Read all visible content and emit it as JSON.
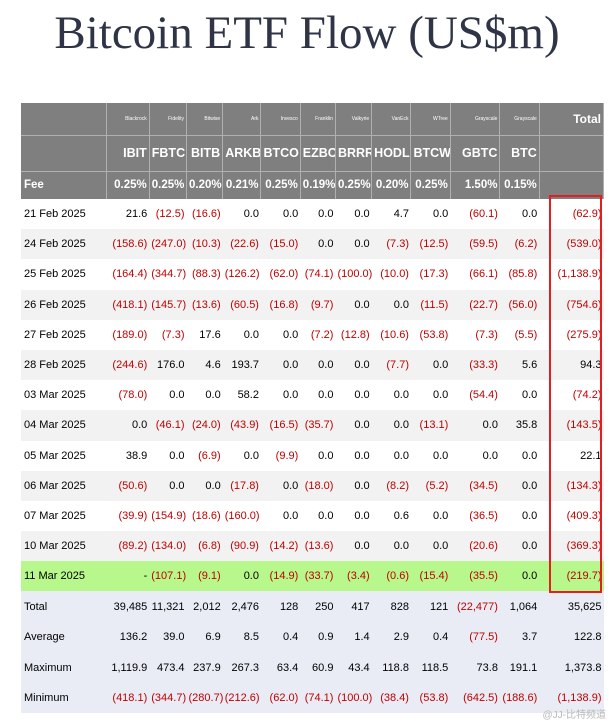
{
  "title": "Bitcoin ETF Flow (US$m)",
  "columns": [
    {
      "issuer": "Blackrock",
      "ticker": "IBIT",
      "fee": "0.25%"
    },
    {
      "issuer": "Fidelity",
      "ticker": "FBTC",
      "fee": "0.25%"
    },
    {
      "issuer": "Bitwise",
      "ticker": "BITB",
      "fee": "0.20%"
    },
    {
      "issuer": "Ark",
      "ticker": "ARKB",
      "fee": "0.21%"
    },
    {
      "issuer": "Invesco",
      "ticker": "BTCO",
      "fee": "0.25%"
    },
    {
      "issuer": "Franklin",
      "ticker": "EZBC",
      "fee": "0.19%"
    },
    {
      "issuer": "Valkyrie",
      "ticker": "BRRR",
      "fee": "0.25%"
    },
    {
      "issuer": "VanEck",
      "ticker": "HODL",
      "fee": "0.20%"
    },
    {
      "issuer": "WTree",
      "ticker": "BTCW",
      "fee": "0.25%"
    },
    {
      "issuer": "Grayscale",
      "ticker": "GBTC",
      "fee": "1.50%"
    },
    {
      "issuer": "Grayscale",
      "ticker": "BTC",
      "fee": "0.15%"
    }
  ],
  "total_header": "Total",
  "fee_label": "Fee",
  "rows": [
    {
      "date": "21 Feb 2025",
      "values": [
        "21.6",
        "(12.5)",
        "(16.6)",
        "0.0",
        "0.0",
        "0.0",
        "0.0",
        "4.7",
        "0.0",
        "(60.1)",
        "0.0"
      ],
      "total": "(62.9)"
    },
    {
      "date": "24 Feb 2025",
      "values": [
        "(158.6)",
        "(247.0)",
        "(10.3)",
        "(22.6)",
        "(15.0)",
        "0.0",
        "0.0",
        "(7.3)",
        "(12.5)",
        "(59.5)",
        "(6.2)"
      ],
      "total": "(539.0)"
    },
    {
      "date": "25 Feb 2025",
      "values": [
        "(164.4)",
        "(344.7)",
        "(88.3)",
        "(126.2)",
        "(62.0)",
        "(74.1)",
        "(100.0)",
        "(10.0)",
        "(17.3)",
        "(66.1)",
        "(85.8)"
      ],
      "total": "(1,138.9)"
    },
    {
      "date": "26 Feb 2025",
      "values": [
        "(418.1)",
        "(145.7)",
        "(13.6)",
        "(60.5)",
        "(16.8)",
        "(9.7)",
        "0.0",
        "0.0",
        "(11.5)",
        "(22.7)",
        "(56.0)"
      ],
      "total": "(754.6)"
    },
    {
      "date": "27 Feb 2025",
      "values": [
        "(189.0)",
        "(7.3)",
        "17.6",
        "0.0",
        "0.0",
        "(7.2)",
        "(12.8)",
        "(10.6)",
        "(53.8)",
        "(7.3)",
        "(5.5)"
      ],
      "total": "(275.9)"
    },
    {
      "date": "28 Feb 2025",
      "values": [
        "(244.6)",
        "176.0",
        "4.6",
        "193.7",
        "0.0",
        "0.0",
        "0.0",
        "(7.7)",
        "0.0",
        "(33.3)",
        "5.6"
      ],
      "total": "94.3"
    },
    {
      "date": "03 Mar 2025",
      "values": [
        "(78.0)",
        "0.0",
        "0.0",
        "58.2",
        "0.0",
        "0.0",
        "0.0",
        "0.0",
        "0.0",
        "(54.4)",
        "0.0"
      ],
      "total": "(74.2)"
    },
    {
      "date": "04 Mar 2025",
      "values": [
        "0.0",
        "(46.1)",
        "(24.0)",
        "(43.9)",
        "(16.5)",
        "(35.7)",
        "0.0",
        "0.0",
        "(13.1)",
        "0.0",
        "35.8"
      ],
      "total": "(143.5)"
    },
    {
      "date": "05 Mar 2025",
      "values": [
        "38.9",
        "0.0",
        "(6.9)",
        "0.0",
        "(9.9)",
        "0.0",
        "0.0",
        "0.0",
        "0.0",
        "0.0",
        "0.0"
      ],
      "total": "22.1"
    },
    {
      "date": "06 Mar 2025",
      "values": [
        "(50.6)",
        "0.0",
        "0.0",
        "(17.8)",
        "0.0",
        "(18.0)",
        "0.0",
        "(8.2)",
        "(5.2)",
        "(34.5)",
        "0.0"
      ],
      "total": "(134.3)"
    },
    {
      "date": "07 Mar 2025",
      "values": [
        "(39.9)",
        "(154.9)",
        "(18.6)",
        "(160.0)",
        "0.0",
        "0.0",
        "0.0",
        "0.6",
        "0.0",
        "(36.5)",
        "0.0"
      ],
      "total": "(409.3)"
    },
    {
      "date": "10 Mar 2025",
      "values": [
        "(89.2)",
        "(134.0)",
        "(6.8)",
        "(90.9)",
        "(14.2)",
        "(13.6)",
        "0.0",
        "0.0",
        "0.0",
        "(20.6)",
        "0.0"
      ],
      "total": "(369.3)"
    },
    {
      "date": "11 Mar 2025",
      "values": [
        "-",
        "(107.1)",
        "(9.1)",
        "0.0",
        "(14.9)",
        "(33.7)",
        "(3.4)",
        "(0.6)",
        "(15.4)",
        "(35.5)",
        "0.0"
      ],
      "total": "(219.7)",
      "highlight": true
    }
  ],
  "summary": [
    {
      "label": "Total",
      "values": [
        "39,485",
        "11,321",
        "2,012",
        "2,476",
        "128",
        "250",
        "417",
        "828",
        "121",
        "(22,477)",
        "1,064"
      ],
      "total": "35,625"
    },
    {
      "label": "Average",
      "values": [
        "136.2",
        "39.0",
        "6.9",
        "8.5",
        "0.4",
        "0.9",
        "1.4",
        "2.9",
        "0.4",
        "(77.5)",
        "3.7"
      ],
      "total": "122.8"
    },
    {
      "label": "Maximum",
      "values": [
        "1,119.9",
        "473.4",
        "237.9",
        "267.3",
        "63.4",
        "60.9",
        "43.4",
        "118.8",
        "118.5",
        "73.8",
        "191.1"
      ],
      "total": "1,373.8"
    },
    {
      "label": "Minimum",
      "values": [
        "(418.1)",
        "(344.7)",
        "(280.7)",
        "(212.6)",
        "(62.0)",
        "(74.1)",
        "(100.0)",
        "(38.4)",
        "(53.8)",
        "(642.5)",
        "(188.6)"
      ],
      "total": "(1,138.9)"
    }
  ],
  "colors": {
    "negative": "#c00000",
    "highlight_row": "#b7f78c",
    "header_bg": "#7f7f7f",
    "summary_bg": "#e9ecf5",
    "box": "#e02020"
  },
  "watermark": "@JJ-比特频道"
}
